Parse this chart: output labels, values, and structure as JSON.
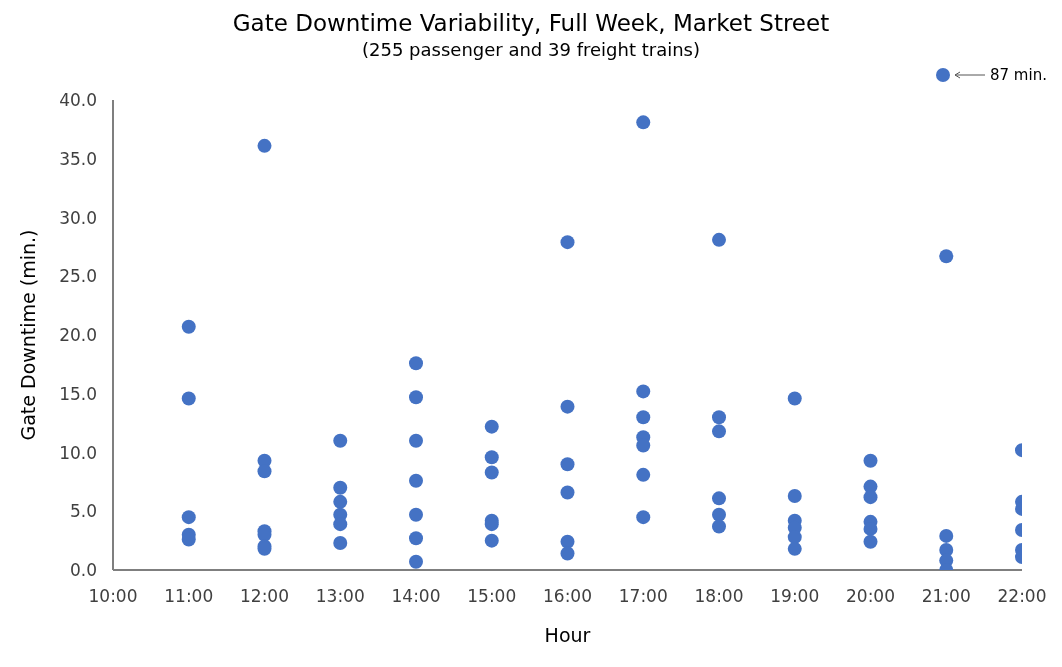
{
  "chart_data": {
    "type": "scatter",
    "title": "Gate Downtime Variability, Full Week, Market Street",
    "subtitle": "(255 passenger and 39 freight trains)",
    "xlabel": "Hour",
    "ylabel": "Gate Downtime (min.)",
    "annotations": [
      "87 min."
    ],
    "series": [
      {
        "color": "#4472c4",
        "x": [
          11,
          11,
          11,
          11,
          11,
          12,
          12,
          12,
          12,
          12,
          12,
          12,
          13,
          13,
          13,
          13,
          13,
          13,
          14,
          14,
          14,
          14,
          14,
          14,
          14,
          15,
          15,
          15,
          15,
          15,
          15,
          16,
          16,
          16,
          16,
          16,
          16,
          17,
          17,
          17,
          17,
          17,
          17,
          17,
          18,
          18,
          18,
          18,
          18,
          18,
          19,
          19,
          19,
          19,
          19,
          19,
          20,
          20,
          20,
          20,
          20,
          20,
          21,
          21,
          21,
          21,
          21,
          22,
          22,
          22,
          22,
          22,
          22
        ],
        "values": [
          20.7,
          14.6,
          4.5,
          3.0,
          2.6,
          36.1,
          9.3,
          8.4,
          3.3,
          3.0,
          2.0,
          1.8,
          11.0,
          7.0,
          5.8,
          4.7,
          3.9,
          2.3,
          17.6,
          14.7,
          11.0,
          7.6,
          4.7,
          2.7,
          0.7,
          12.2,
          9.6,
          8.3,
          4.2,
          3.9,
          2.5,
          27.9,
          13.9,
          9.0,
          6.6,
          2.4,
          1.4,
          38.1,
          15.2,
          13.0,
          11.3,
          10.6,
          8.1,
          4.5,
          28.1,
          13.0,
          11.8,
          6.1,
          4.7,
          3.7,
          14.6,
          6.3,
          4.2,
          3.6,
          2.8,
          1.8,
          9.3,
          7.1,
          6.2,
          4.1,
          3.5,
          2.4,
          26.7,
          2.9,
          1.7,
          0.8,
          0.0,
          10.2,
          5.8,
          5.2,
          3.4,
          1.7,
          1.1
        ]
      }
    ],
    "xlim": [
      10,
      22
    ],
    "xticks": [
      {
        "value": 10,
        "label": "10:00"
      },
      {
        "value": 11,
        "label": "11:00"
      },
      {
        "value": 12,
        "label": "12:00"
      },
      {
        "value": 13,
        "label": "13:00"
      },
      {
        "value": 14,
        "label": "14:00"
      },
      {
        "value": 15,
        "label": "15:00"
      },
      {
        "value": 16,
        "label": "16:00"
      },
      {
        "value": 17,
        "label": "17:00"
      },
      {
        "value": 18,
        "label": "18:00"
      },
      {
        "value": 19,
        "label": "19:00"
      },
      {
        "value": 20,
        "label": "20:00"
      },
      {
        "value": 21,
        "label": "21:00"
      },
      {
        "value": 22,
        "label": "22:00"
      }
    ],
    "ylim": [
      0,
      40
    ],
    "yticks": [
      {
        "value": 0,
        "label": "0.0"
      },
      {
        "value": 5,
        "label": "5.0"
      },
      {
        "value": 10,
        "label": "10.0"
      },
      {
        "value": 15,
        "label": "15.0"
      },
      {
        "value": 20,
        "label": "20.0"
      },
      {
        "value": 25,
        "label": "25.0"
      },
      {
        "value": 30,
        "label": "30.0"
      },
      {
        "value": 35,
        "label": "35.0"
      },
      {
        "value": 40,
        "label": "40.0"
      }
    ],
    "grid": false,
    "legend": false,
    "marker": "circle"
  }
}
